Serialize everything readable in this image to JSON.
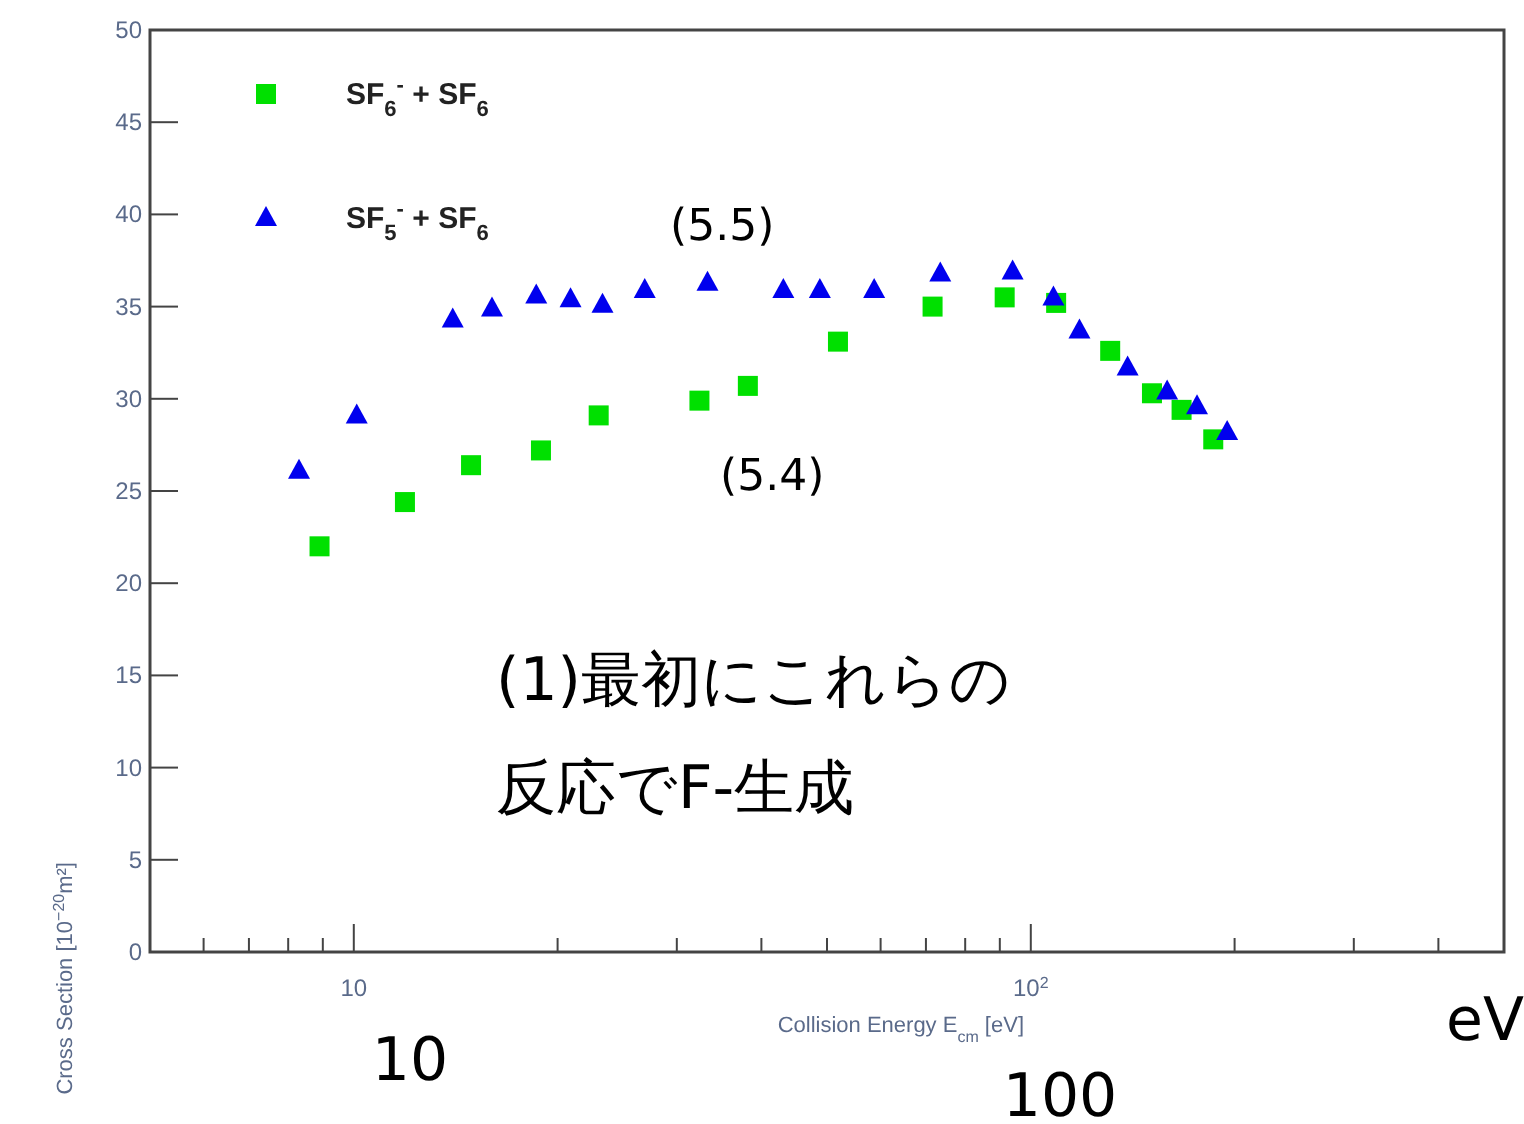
{
  "chart_data": {
    "type": "scatter",
    "xlabel": "Collision Energy E$_{cm}$ [eV]",
    "ylabel": "Cross Section [10$^{−20}$m²]",
    "log": "x",
    "grid": false,
    "legend": "top left",
    "xlim": [
      5,
      500
    ],
    "ylim": [
      0,
      50
    ],
    "xticks": [
      {
        "value": 6,
        "label": null
      },
      {
        "value": 7,
        "label": null
      },
      {
        "value": 8,
        "label": null
      },
      {
        "value": 9,
        "label": null
      },
      10,
      {
        "value": 20,
        "label": null
      },
      {
        "value": 30,
        "label": null
      },
      {
        "value": 40,
        "label": null
      },
      {
        "value": 50,
        "label": null
      },
      {
        "value": 60,
        "label": null
      },
      {
        "value": 70,
        "label": null
      },
      {
        "value": 80,
        "label": null
      },
      {
        "value": 90,
        "label": null
      },
      {
        "value": 100,
        "label": "10$^{2}$"
      },
      {
        "value": 200,
        "label": null
      },
      {
        "value": 300,
        "label": null
      },
      {
        "value": 400,
        "label": null
      }
    ],
    "yticks": [
      0,
      5,
      10,
      15,
      20,
      25,
      30,
      35,
      40,
      45,
      50
    ],
    "series": [
      {
        "name": "SF$_{6}$$^{-}$ + SF$_{6}$",
        "color": "#00e000",
        "marker": "square",
        "x": [
          8.9,
          11.9,
          14.9,
          18.9,
          23.0,
          32.4,
          38.2,
          51.9,
          71.6,
          91.5,
          109,
          131,
          151,
          167,
          186
        ],
        "values": [
          22.0,
          24.4,
          26.4,
          27.2,
          29.1,
          29.9,
          30.7,
          33.1,
          35.0,
          35.5,
          35.2,
          32.6,
          30.3,
          29.4,
          27.8
        ]
      },
      {
        "name": "SF$_{5}$$^{-}$ + SF$_{6}$",
        "color": "#0000ee",
        "marker": "triangle",
        "x": [
          8.3,
          10.1,
          14.0,
          16.0,
          18.6,
          20.9,
          23.3,
          26.9,
          33.3,
          43.1,
          48.8,
          58.7,
          73.5,
          94.0,
          108,
          118,
          139,
          159,
          176,
          195
        ],
        "values": [
          26.1,
          29.1,
          34.3,
          34.9,
          35.6,
          35.4,
          35.1,
          35.9,
          36.3,
          35.9,
          35.9,
          35.9,
          36.8,
          36.9,
          35.5,
          33.7,
          31.7,
          30.4,
          29.6,
          28.2
        ]
      }
    ],
    "annotations": [
      "(5.5)",
      "(5.4)",
      "(1)最初にこれらの",
      "反応でF-生成",
      "10",
      "100",
      "eV"
    ]
  }
}
